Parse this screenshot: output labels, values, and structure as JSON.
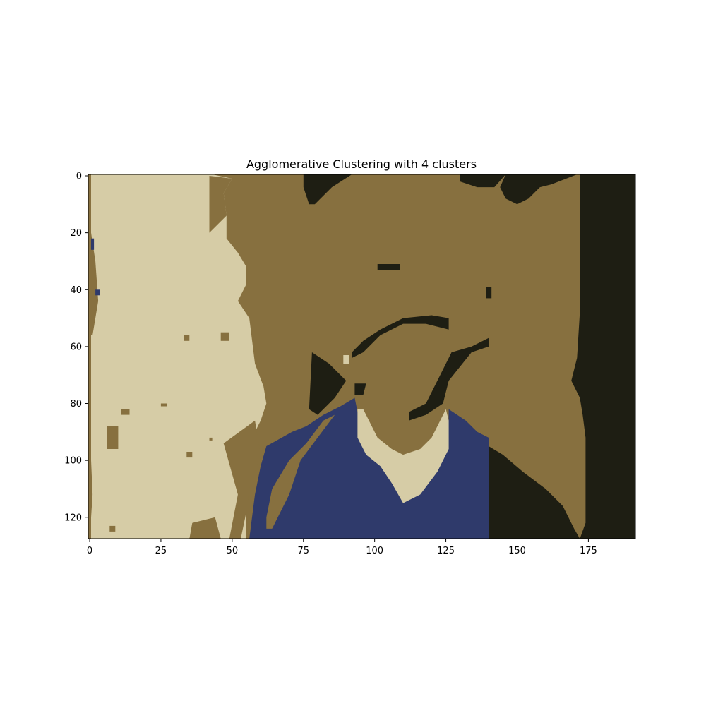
{
  "chart_data": {
    "type": "heatmap",
    "title": "Agglomerative Clustering with 4 clusters",
    "xlabel": "",
    "ylabel": "",
    "xlim": [
      -0.5,
      191.5
    ],
    "ylim": [
      127.5,
      -0.5
    ],
    "image_size": {
      "cols": 192,
      "rows": 128
    },
    "x_ticks": [
      0,
      25,
      50,
      75,
      100,
      125,
      150,
      175
    ],
    "y_ticks": [
      0,
      20,
      40,
      60,
      80,
      100,
      120
    ],
    "grid": false,
    "clusters": [
      {
        "id": 0,
        "color": "#d6cca6"
      },
      {
        "id": 1,
        "color": "#87703f"
      },
      {
        "id": 2,
        "color": "#1e1e13"
      },
      {
        "id": 3,
        "color": "#2f3a6b"
      }
    ],
    "background_cluster": 1,
    "regions": [
      {
        "cluster": 0,
        "points": [
          [
            0.5,
            -0.5
          ],
          [
            43,
            -0.5
          ],
          [
            50,
            1
          ],
          [
            47,
            6
          ],
          [
            48,
            14
          ],
          [
            48,
            22
          ],
          [
            52,
            27
          ],
          [
            55,
            32
          ],
          [
            55,
            38
          ],
          [
            52,
            44
          ],
          [
            56,
            50
          ],
          [
            57,
            58
          ],
          [
            58,
            66
          ],
          [
            61,
            74
          ],
          [
            62,
            80
          ],
          [
            60,
            86
          ],
          [
            57,
            92
          ],
          [
            56,
            100
          ],
          [
            55,
            108
          ],
          [
            55,
            116
          ],
          [
            55,
            127.5
          ],
          [
            0.5,
            127.5
          ]
        ]
      },
      {
        "cluster": 1,
        "points": [
          [
            42,
            0
          ],
          [
            50,
            1
          ],
          [
            47,
            6
          ],
          [
            48,
            14
          ],
          [
            42,
            20
          ],
          [
            42,
            12
          ]
        ]
      },
      {
        "cluster": 1,
        "points": [
          [
            0.5,
            100
          ],
          [
            1,
            112
          ],
          [
            0.5,
            120
          ]
        ]
      },
      {
        "cluster": 1,
        "points": [
          [
            0.5,
            20
          ],
          [
            2,
            30
          ],
          [
            3,
            44
          ],
          [
            1,
            56
          ],
          [
            0.5,
            56
          ]
        ]
      },
      {
        "cluster": 1,
        "points": [
          [
            6,
            88
          ],
          [
            10,
            88
          ],
          [
            10,
            96
          ],
          [
            6,
            96
          ]
        ]
      },
      {
        "cluster": 1,
        "points": [
          [
            36,
            122
          ],
          [
            44,
            120
          ],
          [
            46,
            127.5
          ],
          [
            35,
            127.5
          ]
        ]
      },
      {
        "cluster": 1,
        "points": [
          [
            47,
            94
          ],
          [
            58,
            86
          ],
          [
            60,
            98
          ],
          [
            56,
            110
          ],
          [
            55,
            118
          ],
          [
            53,
            127.5
          ],
          [
            49,
            127.5
          ],
          [
            52,
            112
          ]
        ]
      },
      {
        "cluster": 1,
        "points": [
          [
            33,
            56
          ],
          [
            35,
            56
          ],
          [
            35,
            58
          ],
          [
            33,
            58
          ]
        ]
      },
      {
        "cluster": 1,
        "points": [
          [
            46,
            55
          ],
          [
            49,
            55
          ],
          [
            49,
            58
          ],
          [
            46,
            58
          ]
        ]
      },
      {
        "cluster": 1,
        "points": [
          [
            11,
            82
          ],
          [
            14,
            82
          ],
          [
            14,
            84
          ],
          [
            11,
            84
          ]
        ]
      },
      {
        "cluster": 1,
        "points": [
          [
            25,
            80
          ],
          [
            27,
            80
          ],
          [
            27,
            81
          ],
          [
            25,
            81
          ]
        ]
      },
      {
        "cluster": 1,
        "points": [
          [
            34,
            97
          ],
          [
            36,
            97
          ],
          [
            36,
            99
          ],
          [
            34,
            99
          ]
        ]
      },
      {
        "cluster": 1,
        "points": [
          [
            7,
            123
          ],
          [
            9,
            123
          ],
          [
            9,
            125
          ],
          [
            7,
            125
          ]
        ]
      },
      {
        "cluster": 1,
        "points": [
          [
            42,
            92
          ],
          [
            43,
            92
          ],
          [
            43,
            93
          ],
          [
            42,
            93
          ]
        ]
      },
      {
        "cluster": 3,
        "points": [
          [
            0.5,
            22
          ],
          [
            1.5,
            22
          ],
          [
            1.5,
            26
          ],
          [
            0.5,
            26
          ]
        ]
      },
      {
        "cluster": 3,
        "points": [
          [
            2,
            40
          ],
          [
            3.5,
            40
          ],
          [
            3.5,
            42
          ],
          [
            2,
            42
          ]
        ]
      },
      {
        "cluster": 2,
        "points": [
          [
            75,
            -0.5
          ],
          [
            92,
            -0.5
          ],
          [
            85,
            4
          ],
          [
            79,
            10
          ],
          [
            77,
            10
          ],
          [
            75,
            4
          ]
        ]
      },
      {
        "cluster": 2,
        "points": [
          [
            130,
            -0.5
          ],
          [
            146,
            -0.5
          ],
          [
            142,
            4
          ],
          [
            136,
            4
          ],
          [
            130,
            2
          ]
        ]
      },
      {
        "cluster": 2,
        "points": [
          [
            146,
            -0.5
          ],
          [
            171,
            -0.5
          ],
          [
            162,
            3
          ],
          [
            158,
            4
          ],
          [
            154,
            8
          ],
          [
            150,
            10
          ],
          [
            146,
            8
          ],
          [
            144,
            4
          ]
        ]
      },
      {
        "cluster": 2,
        "points": [
          [
            172,
            -0.5
          ],
          [
            191.5,
            -0.5
          ],
          [
            191.5,
            127.5
          ],
          [
            172,
            127.5
          ],
          [
            174,
            122
          ],
          [
            174,
            108
          ],
          [
            174,
            92
          ],
          [
            173,
            84
          ],
          [
            172,
            78
          ],
          [
            169,
            72
          ],
          [
            171,
            64
          ],
          [
            172,
            48
          ],
          [
            172,
            10
          ]
        ]
      },
      {
        "cluster": 2,
        "points": [
          [
            140,
            95
          ],
          [
            145,
            98
          ],
          [
            152,
            104
          ],
          [
            160,
            110
          ],
          [
            166,
            116
          ],
          [
            170,
            124
          ],
          [
            172,
            127.5
          ],
          [
            140,
            127.5
          ]
        ]
      },
      {
        "cluster": 2,
        "points": [
          [
            78,
            62
          ],
          [
            84,
            66
          ],
          [
            90,
            72
          ],
          [
            86,
            78
          ],
          [
            80,
            84
          ],
          [
            77,
            82
          ]
        ]
      },
      {
        "cluster": 2,
        "points": [
          [
            92,
            62
          ],
          [
            96,
            58
          ],
          [
            102,
            54
          ],
          [
            110,
            50
          ],
          [
            120,
            49
          ],
          [
            126,
            50
          ],
          [
            126,
            54
          ],
          [
            118,
            52
          ],
          [
            110,
            52
          ],
          [
            102,
            56
          ],
          [
            96,
            62
          ],
          [
            92,
            64
          ]
        ]
      },
      {
        "cluster": 2,
        "points": [
          [
            127,
            62
          ],
          [
            134,
            60
          ],
          [
            140,
            57
          ],
          [
            140,
            60
          ],
          [
            134,
            62
          ],
          [
            126,
            72
          ],
          [
            124,
            80
          ],
          [
            118,
            84
          ],
          [
            112,
            86
          ],
          [
            112,
            83
          ],
          [
            118,
            80
          ],
          [
            122,
            72
          ]
        ]
      },
      {
        "cluster": 2,
        "points": [
          [
            101,
            31
          ],
          [
            109,
            31
          ],
          [
            109,
            33
          ],
          [
            101,
            33
          ]
        ]
      },
      {
        "cluster": 2,
        "points": [
          [
            139,
            39
          ],
          [
            141,
            39
          ],
          [
            141,
            43
          ],
          [
            139,
            43
          ]
        ]
      },
      {
        "cluster": 2,
        "points": [
          [
            93,
            73
          ],
          [
            97,
            73
          ],
          [
            96,
            77
          ],
          [
            93,
            77
          ]
        ]
      },
      {
        "cluster": 2,
        "points": [
          [
            97,
            119
          ],
          [
            99,
            119
          ],
          [
            99,
            120
          ],
          [
            97,
            120
          ]
        ]
      },
      {
        "cluster": 3,
        "points": [
          [
            62,
            95
          ],
          [
            71,
            90
          ],
          [
            76,
            88
          ],
          [
            82,
            84
          ],
          [
            88,
            81
          ],
          [
            93,
            78
          ],
          [
            95,
            88
          ],
          [
            99,
            95
          ],
          [
            105,
            100
          ],
          [
            108,
            108
          ],
          [
            110,
            112
          ],
          [
            114,
            104
          ],
          [
            118,
            98
          ],
          [
            124,
            94
          ],
          [
            126,
            86
          ],
          [
            126,
            82
          ],
          [
            132,
            86
          ],
          [
            136,
            90
          ],
          [
            140,
            92
          ],
          [
            140,
            127.5
          ],
          [
            56,
            127.5
          ],
          [
            58,
            112
          ],
          [
            60,
            102
          ]
        ]
      },
      {
        "cluster": 0,
        "points": [
          [
            89,
            63
          ],
          [
            91,
            63
          ],
          [
            91,
            66
          ],
          [
            89,
            66
          ]
        ]
      },
      {
        "cluster": 0,
        "points": [
          [
            94,
            82
          ],
          [
            96,
            82
          ],
          [
            101,
            92
          ],
          [
            106,
            96
          ],
          [
            110,
            98
          ],
          [
            116,
            96
          ],
          [
            120,
            92
          ],
          [
            123,
            86
          ],
          [
            125,
            82
          ],
          [
            126,
            86
          ],
          [
            126,
            96
          ],
          [
            122,
            104
          ],
          [
            116,
            112
          ],
          [
            110,
            115
          ],
          [
            106,
            108
          ],
          [
            102,
            102
          ],
          [
            97,
            98
          ],
          [
            94,
            92
          ]
        ]
      },
      {
        "cluster": 1,
        "points": [
          [
            62,
            120
          ],
          [
            64,
            110
          ],
          [
            70,
            100
          ],
          [
            76,
            94
          ],
          [
            82,
            86
          ],
          [
            86,
            84
          ],
          [
            80,
            92
          ],
          [
            74,
            100
          ],
          [
            70,
            112
          ],
          [
            64,
            124
          ],
          [
            62,
            124
          ]
        ]
      }
    ]
  }
}
